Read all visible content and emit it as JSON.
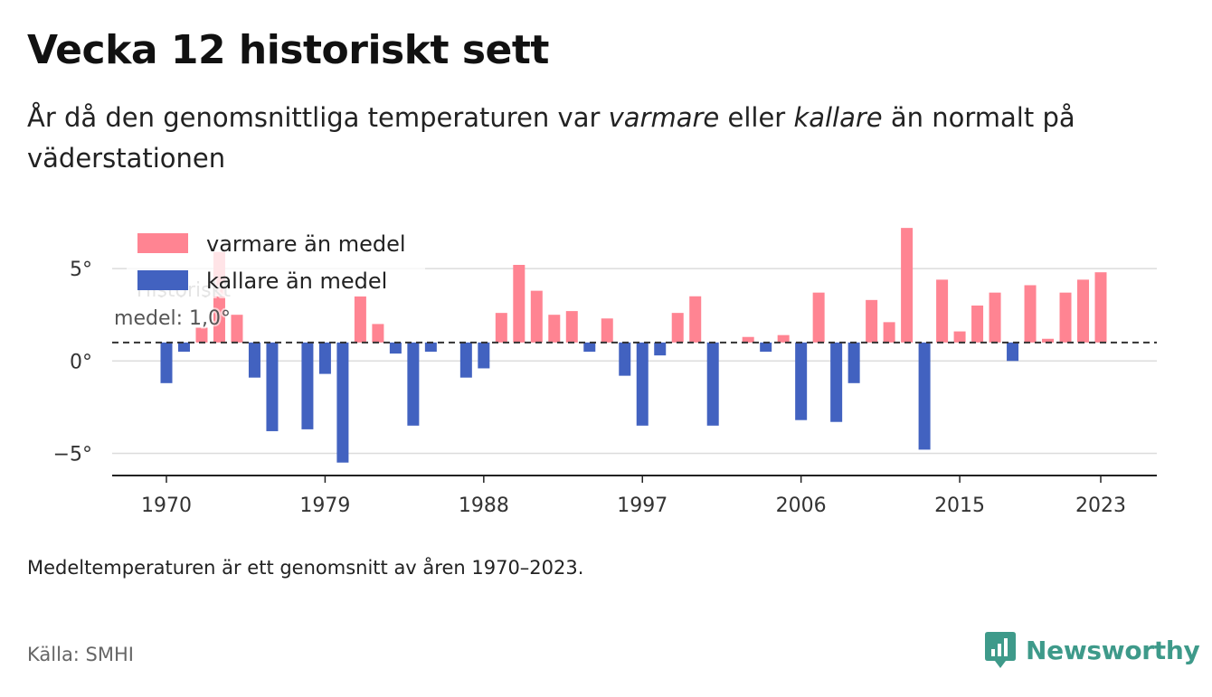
{
  "title": "Vecka 12 historiskt sett",
  "subtitle": {
    "part1": "År då den genomsnittliga temperaturen var ",
    "warm_word": "varmare",
    "part2": " eller ",
    "cold_word": "kallare",
    "part3": " än normalt på väderstationen"
  },
  "note": "Medeltemperaturen är ett genomsnitt av åren 1970–2023.",
  "source": "Källa: SMHI",
  "brand": "Newsworthy",
  "colors": {
    "warm": "#ff8492",
    "cold": "#4262c0",
    "brand": "#3e9a8a"
  },
  "chart_data": {
    "type": "bar",
    "baseline": 1.0,
    "baseline_label": [
      "Historiskt",
      "medel: 1,0°"
    ],
    "ylim": [
      -6.2,
      7.5
    ],
    "y_ticks": [
      {
        "value": 5,
        "label": "5°"
      },
      {
        "value": 0,
        "label": "0°"
      },
      {
        "value": -5,
        "label": "−5°"
      }
    ],
    "x_ticks": [
      1970,
      1979,
      1988,
      1997,
      2006,
      2015,
      2023
    ],
    "legend": [
      {
        "key": "warm",
        "label": "varmare än medel"
      },
      {
        "key": "cold",
        "label": "kallare än medel"
      }
    ],
    "legend_position": "top-left",
    "grid": true,
    "years": [
      1970,
      1971,
      1972,
      1973,
      1974,
      1975,
      1976,
      1977,
      1978,
      1979,
      1980,
      1981,
      1982,
      1983,
      1984,
      1985,
      1986,
      1987,
      1988,
      1989,
      1990,
      1991,
      1992,
      1993,
      1994,
      1995,
      1996,
      1997,
      1998,
      1999,
      2000,
      2001,
      2002,
      2003,
      2004,
      2005,
      2006,
      2007,
      2008,
      2009,
      2010,
      2011,
      2012,
      2013,
      2014,
      2015,
      2016,
      2017,
      2018,
      2019,
      2020,
      2021,
      2022,
      2023
    ],
    "values": [
      -1.2,
      0.5,
      1.8,
      5.9,
      2.5,
      -0.9,
      -3.8,
      null,
      -3.7,
      -0.7,
      -5.5,
      3.5,
      2.0,
      0.4,
      -3.5,
      0.5,
      null,
      -0.9,
      -0.4,
      2.6,
      5.2,
      3.8,
      2.5,
      2.7,
      0.5,
      2.3,
      -0.8,
      -3.5,
      0.3,
      2.6,
      3.5,
      -3.5,
      null,
      1.3,
      0.5,
      1.4,
      -3.2,
      3.7,
      -3.3,
      -1.2,
      3.3,
      2.1,
      7.2,
      -4.8,
      4.4,
      1.6,
      3.0,
      3.7,
      0.0,
      4.1,
      1.2,
      3.7,
      4.4,
      4.8
    ]
  }
}
